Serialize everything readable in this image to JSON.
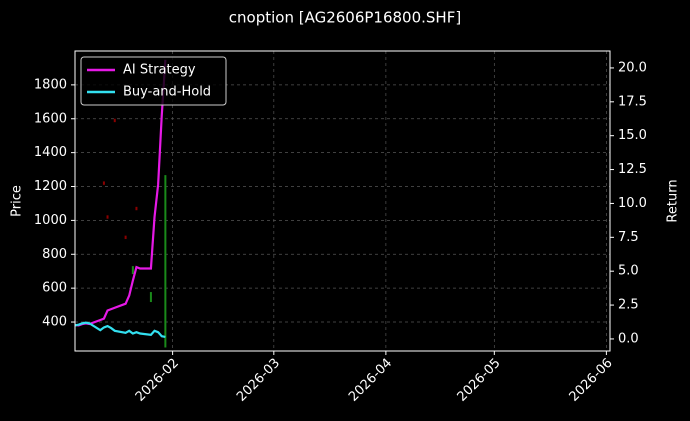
{
  "chart_data": {
    "type": "line",
    "title": "cnoption [AG2606P16800.SHF]",
    "ylabel": "Price",
    "y2label": "Return",
    "x": [
      "2026-01-05",
      "2026-01-06",
      "2026-01-07",
      "2026-01-08",
      "2026-01-09",
      "2026-01-12",
      "2026-01-13",
      "2026-01-14",
      "2026-01-15",
      "2026-01-16",
      "2026-01-19",
      "2026-01-20",
      "2026-01-21",
      "2026-01-22",
      "2026-01-23",
      "2026-01-26",
      "2026-01-27",
      "2026-01-28",
      "2026-01-29",
      "2026-01-30"
    ],
    "series": [
      {
        "name": "AI Strategy",
        "color": "#e619e6",
        "axis": "y2",
        "values": [
          1.03,
          1.0,
          1.1,
          1.15,
          1.1,
          1.4,
          1.5,
          2.1,
          2.2,
          2.3,
          2.6,
          3.2,
          4.3,
          5.3,
          5.2,
          5.2,
          9.0,
          11.4,
          16.5,
          20.6
        ]
      },
      {
        "name": "Buy-and-Hold",
        "color": "#33e0f0",
        "axis": "y2",
        "values": [
          1.0,
          1.05,
          1.15,
          1.2,
          1.15,
          0.65,
          0.85,
          0.95,
          0.8,
          0.6,
          0.45,
          0.6,
          0.4,
          0.5,
          0.4,
          0.3,
          0.6,
          0.5,
          0.2,
          0.15
        ]
      }
    ],
    "price_bars": {
      "x": [
        "2026-01-13",
        "2026-01-14",
        "2026-01-16",
        "2026-01-19",
        "2026-01-21",
        "2026-01-22",
        "2026-01-26",
        "2026-01-30"
      ],
      "low": [
        1210,
        1010,
        1580,
        890,
        683,
        1060,
        518,
        250
      ],
      "high": [
        1230,
        1030,
        1600,
        910,
        730,
        1080,
        577,
        1267
      ],
      "colors": [
        "#8b0000",
        "#8b0000",
        "#8b0000",
        "#8b0000",
        "#1a8a1a",
        "#8b0000",
        "#1a8a1a",
        "#1a8a1a"
      ]
    },
    "xlim": [
      "2026-01-05",
      "2026-06-02"
    ],
    "xticks": [
      {
        "value": "2026-02-01",
        "label": "2026-02"
      },
      {
        "value": "2026-03-01",
        "label": "2026-03"
      },
      {
        "value": "2026-04-01",
        "label": "2026-04"
      },
      {
        "value": "2026-05-01",
        "label": "2026-05"
      },
      {
        "value": "2026-06-01",
        "label": "2026-06"
      }
    ],
    "ylim": [
      229,
      2000
    ],
    "yticks": [
      400,
      600,
      800,
      1000,
      1200,
      1400,
      1600,
      1800
    ],
    "y2lim": [
      -0.89,
      21.25
    ],
    "y2ticks": [
      {
        "value": 0,
        "label": "0.0"
      },
      {
        "value": 2.5,
        "label": "2.5"
      },
      {
        "value": 5,
        "label": "5.0"
      },
      {
        "value": 7.5,
        "label": "7.5"
      },
      {
        "value": 10,
        "label": "10.0"
      },
      {
        "value": 12.5,
        "label": "12.5"
      },
      {
        "value": 15,
        "label": "15.0"
      },
      {
        "value": 17.5,
        "label": "17.5"
      },
      {
        "value": 20,
        "label": "20.0"
      }
    ],
    "grid": true,
    "legend": "upper left"
  }
}
